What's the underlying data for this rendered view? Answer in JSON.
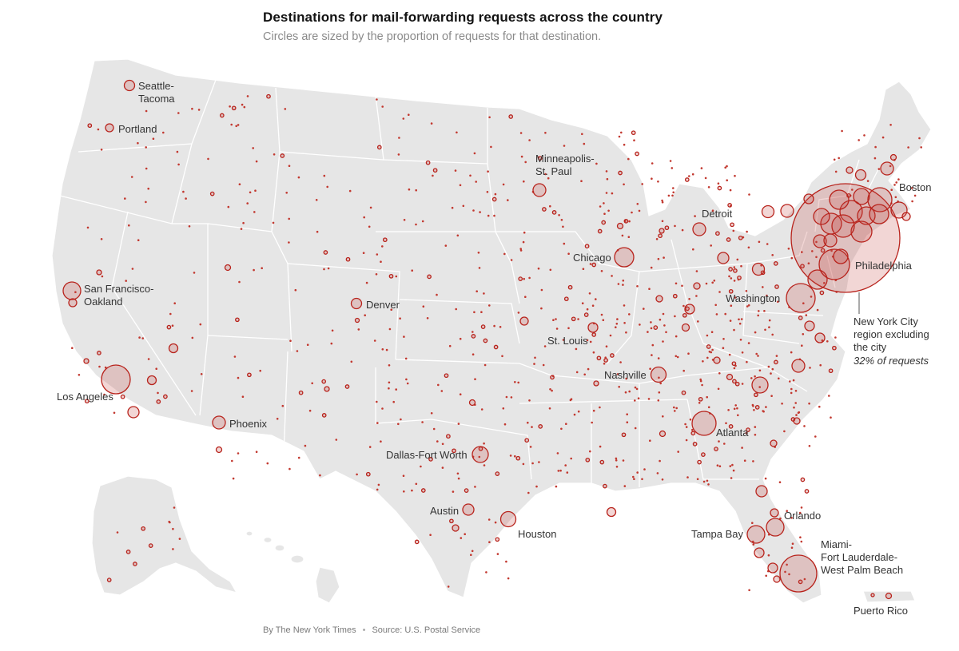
{
  "header": {
    "title": "Destinations for mail-forwarding requests across the country",
    "subtitle": "Circles are sized by the proportion of requests for that destination."
  },
  "footer": {
    "byline": "By The New York Times",
    "source": "Source: U.S. Postal Service"
  },
  "colors": {
    "land": "#e6e6e6",
    "bubble_stroke": "#b8231c",
    "bubble_fill": "rgba(198,70,64,0.22)"
  },
  "city_labels": {
    "seattle_1": "Seattle-",
    "seattle_2": "Tacoma",
    "portland": "Portland",
    "sf_1": "San Francisco-",
    "sf_2": "Oakland",
    "los_angeles": "Los Angeles",
    "phoenix": "Phoenix",
    "denver": "Denver",
    "minneapolis_1": "Minneapolis-",
    "minneapolis_2": "St. Paul",
    "chicago": "Chicago",
    "st_louis": "St. Louis",
    "detroit": "Detroit",
    "nashville": "Nashville",
    "dallas": "Dallas-Fort Worth",
    "austin": "Austin",
    "houston": "Houston",
    "atlanta": "Atlanta",
    "washington": "Washington",
    "philadelphia": "Philadelphia",
    "boston": "Boston",
    "orlando": "Orlando",
    "tampa": "Tampa Bay",
    "miami_1": "Miami-",
    "miami_2": "Fort Lauderdale-",
    "miami_3": "West Palm Beach",
    "puerto_rico": "Puerto Rico"
  },
  "annotation": {
    "line1": "New York City",
    "line2": "region excluding",
    "line3": "the city",
    "share": "32% of requests"
  },
  "featured_destinations": [
    {
      "name": "New York City region excluding the city",
      "share_percent": 32
    }
  ]
}
